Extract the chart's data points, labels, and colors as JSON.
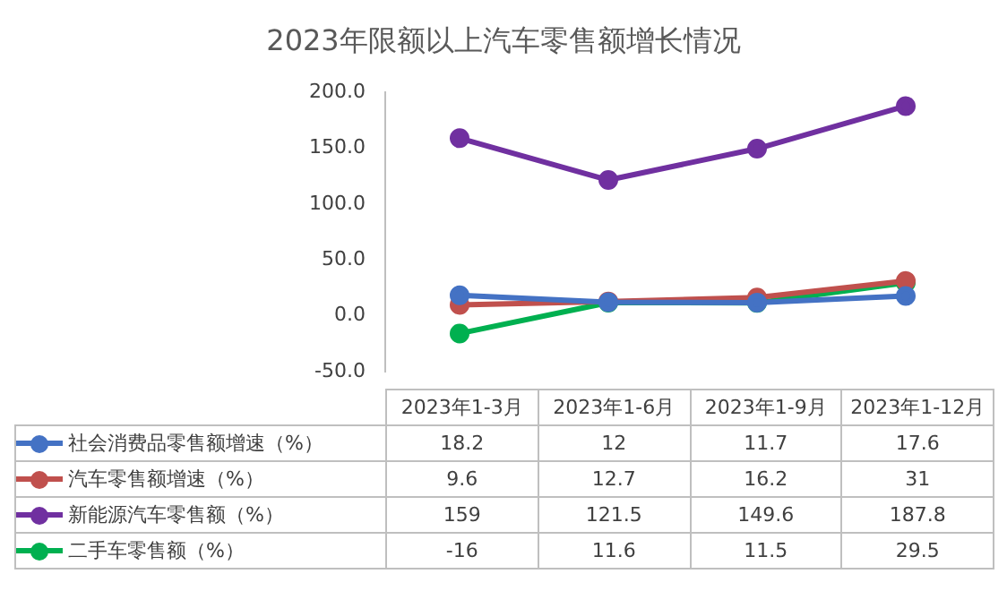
{
  "chart_data": {
    "type": "line",
    "title": "2023年限额以上汽车零售额增长情况",
    "categories": [
      "2023年1-3月",
      "2023年1-6月",
      "2023年1-9月",
      "2023年1-12月"
    ],
    "series": [
      {
        "name": "社会消费品零售额增速（%）",
        "color": "#4472c4",
        "values": [
          18.2,
          12,
          11.7,
          17.6
        ]
      },
      {
        "name": "汽车零售额增速（%）",
        "color": "#c0504d",
        "values": [
          9.6,
          12.7,
          16.2,
          31
        ]
      },
      {
        "name": "新能源汽车零售额（%）",
        "color": "#7030a0",
        "values": [
          159,
          121.5,
          149.6,
          187.8
        ]
      },
      {
        "name": "二手车零售额（%）",
        "color": "#00b050",
        "values": [
          -16,
          11.6,
          11.5,
          29.5
        ]
      }
    ],
    "ylim": [
      -50,
      200
    ],
    "yticks": [
      {
        "value": -50,
        "label": "-50.0"
      },
      {
        "value": 0,
        "label": "0.0"
      },
      {
        "value": 50,
        "label": "50.0"
      },
      {
        "value": 100,
        "label": "100.0"
      },
      {
        "value": 150,
        "label": "150.0"
      },
      {
        "value": 200,
        "label": "200.0"
      }
    ],
    "marker": "circle",
    "line_style": "solid",
    "legend": "bottom left",
    "data_labels": true,
    "grid": false
  }
}
